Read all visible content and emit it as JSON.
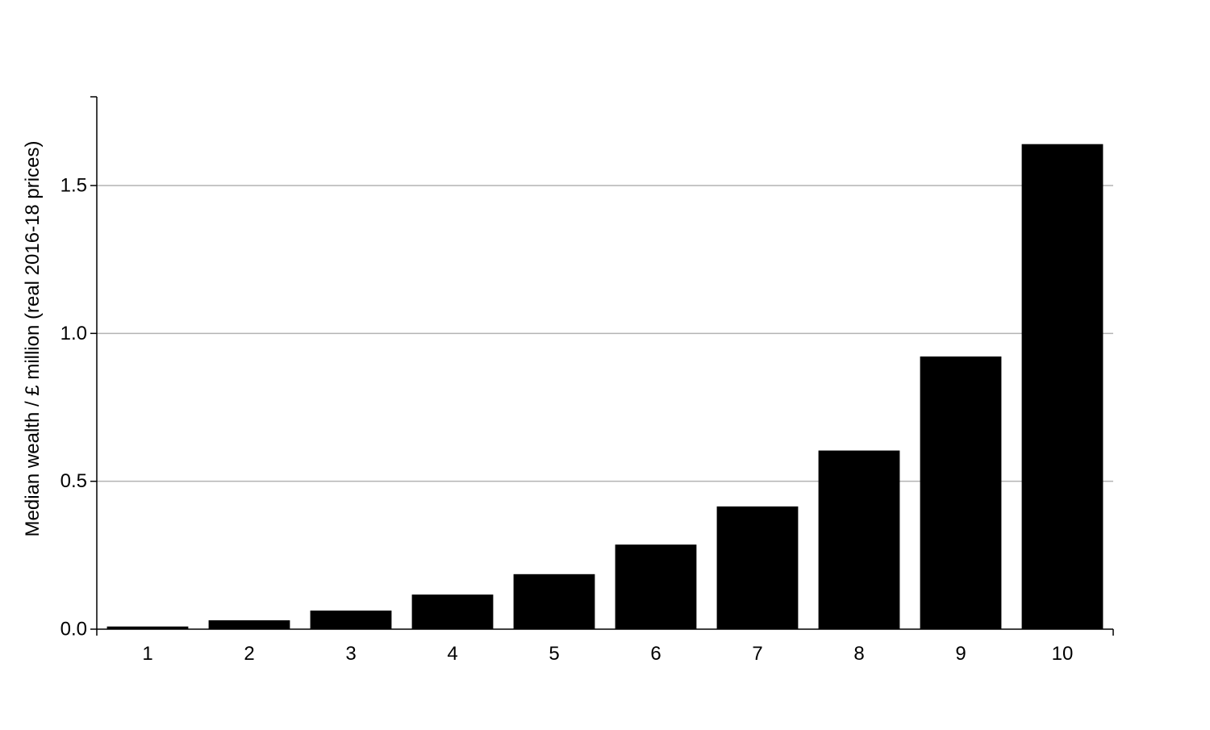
{
  "chart_data": {
    "type": "bar",
    "title": "",
    "xlabel": "",
    "ylabel": "Median wealth / £ million (real 2016-18 prices)",
    "categories": [
      "1",
      "2",
      "3",
      "4",
      "5",
      "6",
      "7",
      "8",
      "9",
      "10"
    ],
    "values": [
      0.009,
      0.03,
      0.063,
      0.117,
      0.186,
      0.286,
      0.415,
      0.604,
      0.922,
      1.64
    ],
    "ylim": [
      0,
      1.8
    ],
    "yticks": [
      0.0,
      0.5,
      1.0,
      1.5
    ],
    "ytick_labels": [
      "0.0",
      "0.5",
      "1.0",
      "1.5"
    ],
    "grid": "horizontal",
    "legend": "none",
    "colors": {
      "bar": "#000000",
      "grid": "#b3b3b3",
      "axis": "#000000",
      "background": "#ffffff"
    }
  }
}
